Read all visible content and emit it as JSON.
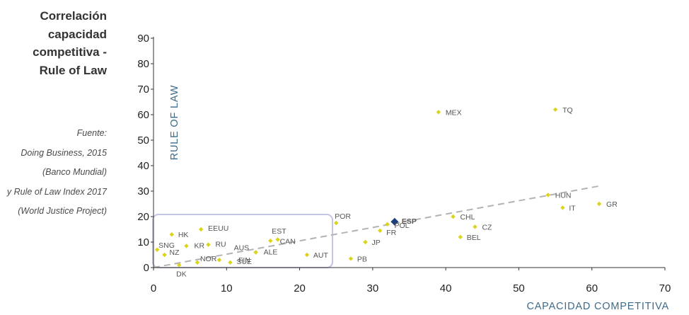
{
  "title_lines": [
    "Correlación",
    "capacidad",
    "competitiva -",
    "Rule of Law"
  ],
  "source_lines": [
    "Fuente:",
    "Doing Business, 2015",
    "(Banco Mundial)",
    "y Rule of Law Index 2017",
    "(World Justice Project)"
  ],
  "colors": {
    "point": "#dcd41a",
    "highlight": "#1c3f7a",
    "trendline": "#b3b3b3",
    "box": "#c4c4e4",
    "axis_title": "#3e6a8a"
  },
  "chart_data": {
    "type": "scatter",
    "xlabel": "CAPACIDAD COMPETITIVA",
    "ylabel": "RULE OF LAW",
    "xlim": [
      0,
      70
    ],
    "ylim": [
      0,
      90
    ],
    "xticks": [
      "0",
      "10",
      "20",
      "30",
      "40",
      "50",
      "60",
      "70"
    ],
    "yticks": [
      "0",
      "10",
      "20",
      "30",
      "40",
      "50",
      "60",
      "70",
      "80",
      "90"
    ],
    "grid": false,
    "points": [
      {
        "label": "DK",
        "x": 3.5,
        "y": 1
      },
      {
        "label": "NOR",
        "x": 6,
        "y": 2
      },
      {
        "label": "SUE",
        "x": 10.5,
        "y": 2
      },
      {
        "label": "FIN",
        "x": 9,
        "y": 3
      },
      {
        "label": "NZ",
        "x": 1.5,
        "y": 5
      },
      {
        "label": "SNG",
        "x": 0.5,
        "y": 7
      },
      {
        "label": "AUS",
        "x": 14,
        "y": 6
      },
      {
        "label": "ALE",
        "x": 14,
        "y": 6
      },
      {
        "label": "KR",
        "x": 4.5,
        "y": 8.5
      },
      {
        "label": "RU",
        "x": 7.5,
        "y": 9
      },
      {
        "label": "CAN",
        "x": 17,
        "y": 11
      },
      {
        "label": "EST",
        "x": 16,
        "y": 10.5
      },
      {
        "label": "HK",
        "x": 2.5,
        "y": 13
      },
      {
        "label": "EEUU",
        "x": 6.5,
        "y": 15
      },
      {
        "label": "AUT",
        "x": 21,
        "y": 5
      },
      {
        "label": "PB",
        "x": 27,
        "y": 3.5
      },
      {
        "label": "POR",
        "x": 25,
        "y": 17.5
      },
      {
        "label": "JP",
        "x": 29,
        "y": 10
      },
      {
        "label": "FR",
        "x": 31,
        "y": 14.5
      },
      {
        "label": "POL",
        "x": 32,
        "y": 17
      },
      {
        "label": "ESP",
        "x": 33,
        "y": 18,
        "highlight": true
      },
      {
        "label": "CHL",
        "x": 41,
        "y": 20
      },
      {
        "label": "CZ",
        "x": 44,
        "y": 16
      },
      {
        "label": "BEL",
        "x": 42,
        "y": 12
      },
      {
        "label": "MEX",
        "x": 39,
        "y": 61
      },
      {
        "label": "TQ",
        "x": 55,
        "y": 62
      },
      {
        "label": "HUN",
        "x": 54,
        "y": 28.5
      },
      {
        "label": "IT",
        "x": 56,
        "y": 23.5
      },
      {
        "label": "GR",
        "x": 61,
        "y": 25
      }
    ],
    "trendline": {
      "x": [
        0,
        61
      ],
      "y": [
        0,
        32
      ]
    },
    "highlight_box": {
      "x": [
        0,
        24.5
      ],
      "y": [
        0,
        20
      ]
    }
  }
}
